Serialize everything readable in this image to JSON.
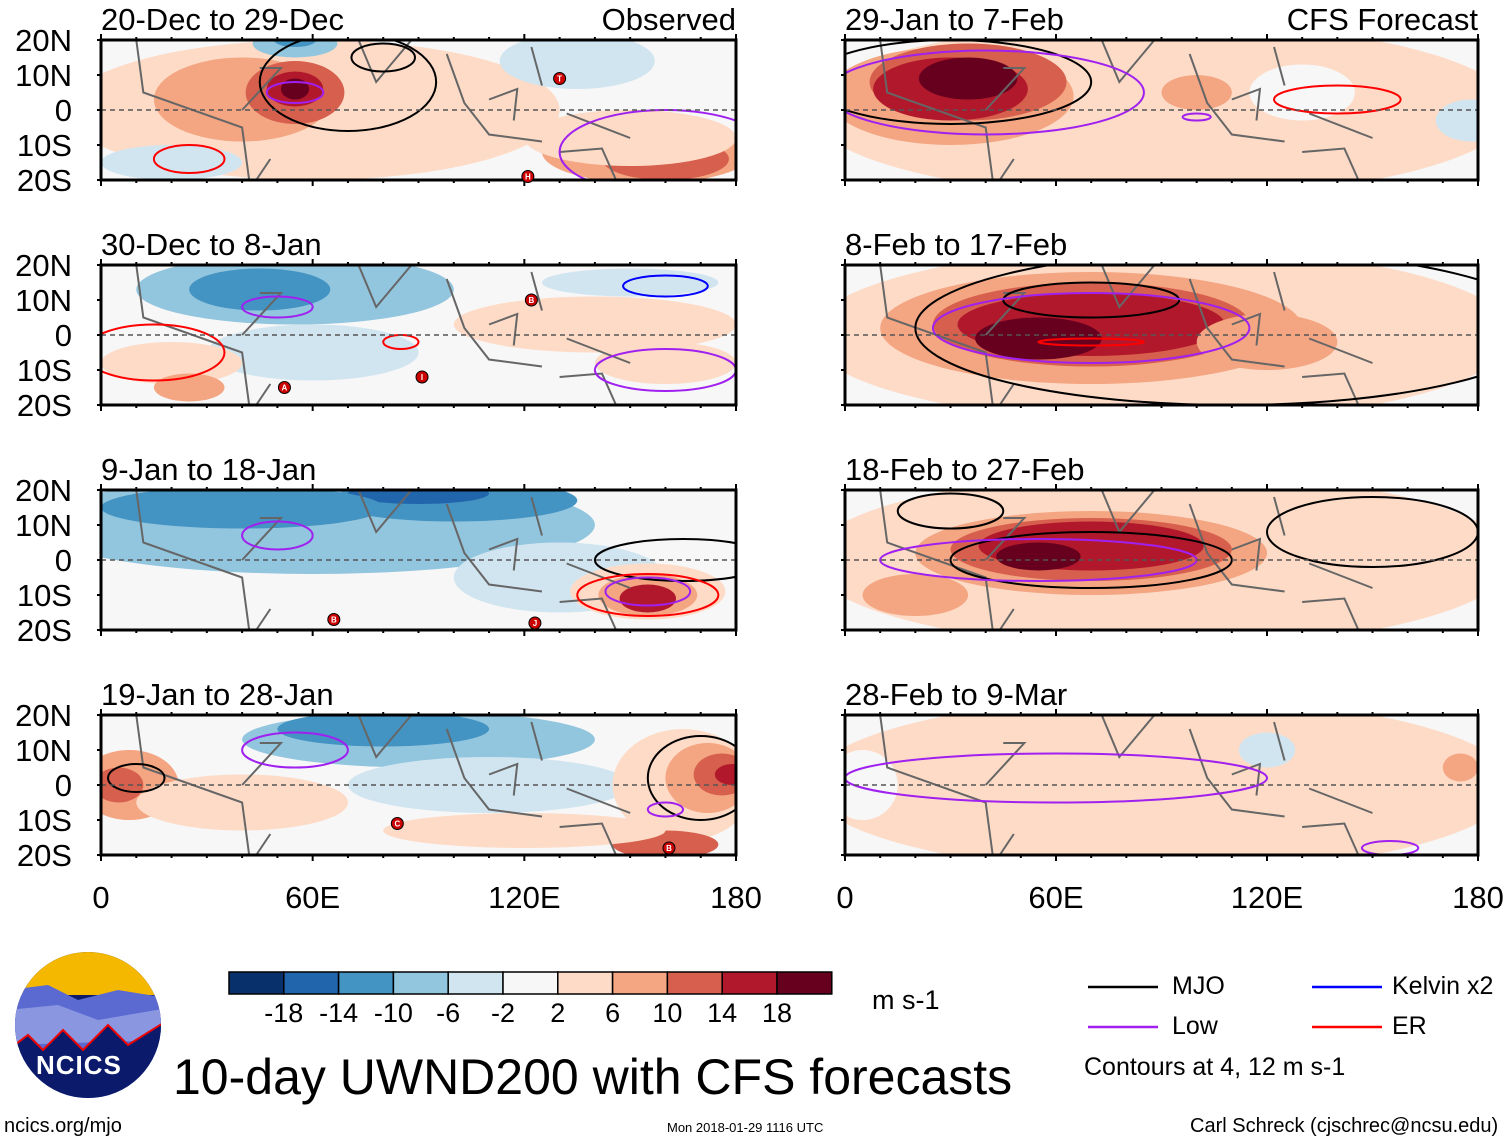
{
  "chart_data": {
    "type": "heatmap",
    "title": "10-day UWND200 with CFS forecasts",
    "variable": "200 hPa zonal wind anomaly",
    "units": "m s-1",
    "lat_labels": [
      "20N",
      "10N",
      "0",
      "10S",
      "20S"
    ],
    "lon_labels": [
      "0",
      "60E",
      "120E",
      "180"
    ],
    "lon_range": [
      0,
      180
    ],
    "lat_range": [
      -20,
      20
    ],
    "color_levels": [
      "-18",
      "-14",
      "-10",
      "-6",
      "-2",
      "2",
      "6",
      "10",
      "14",
      "18"
    ],
    "colors": [
      "#08306b",
      "#2166ac",
      "#4393c3",
      "#92c5de",
      "#d1e5f0",
      "#f7f7f7",
      "#fddbc7",
      "#f4a582",
      "#d6604d",
      "#b2182b",
      "#67001f"
    ],
    "panels": [
      {
        "label": "20-Dec to 29-Dec",
        "tag": "Observed",
        "storms": [
          "T",
          "H"
        ]
      },
      {
        "label": "30-Dec to 8-Jan",
        "tag": "",
        "storms": [
          "B",
          "A",
          "I"
        ]
      },
      {
        "label": "9-Jan to 18-Jan",
        "tag": "",
        "storms": [
          "B",
          "J"
        ]
      },
      {
        "label": "19-Jan to 28-Jan",
        "tag": "",
        "storms": [
          "C",
          "B"
        ]
      },
      {
        "label": "29-Jan to 7-Feb",
        "tag": "CFS Forecast",
        "storms": []
      },
      {
        "label": "8-Feb to 17-Feb",
        "tag": "",
        "storms": []
      },
      {
        "label": "18-Feb to 27-Feb",
        "tag": "",
        "storms": []
      },
      {
        "label": "28-Feb to 9-Mar",
        "tag": "",
        "storms": []
      }
    ],
    "legend": [
      {
        "name": "MJO",
        "color": "#000000"
      },
      {
        "name": "Low",
        "color": "#a020f0"
      },
      {
        "name": "Kelvin x2",
        "color": "#0000ff"
      },
      {
        "name": "ER",
        "color": "#ff0000"
      }
    ],
    "contour_note": "Contours at 4, 12 m s-1"
  },
  "logo_text": "NCICS",
  "footer": {
    "left": "ncics.org/mjo",
    "center": "Mon 2018-01-29 1116 UTC",
    "right": "Carl Schreck (cjschrec@ncsu.edu)"
  }
}
